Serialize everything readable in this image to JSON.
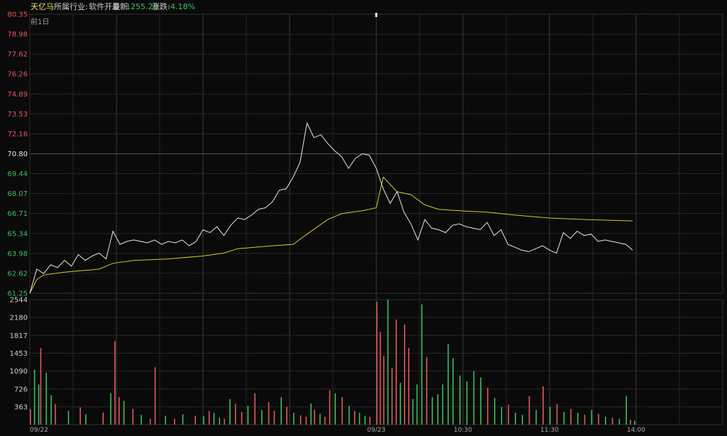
{
  "header": {
    "stock_name": "天亿马",
    "industry_label": "所属行业:",
    "industry_value": "软件开发",
    "latest_label": "最新",
    "latest_value": "1255.28",
    "change_label": "涨跌:",
    "change_value": "-4.18%",
    "prev_day_label": "前1日"
  },
  "colors": {
    "background": "#0a0a0a",
    "grid": "#262626",
    "price_line": "#e8e8e8",
    "avg_line": "#d7c82a",
    "up": "#e05a5a",
    "down": "#3cbf5a",
    "neutral": "#e8e8e8",
    "accent_yellow": "#f0e060"
  },
  "chart_data": [
    {
      "type": "line",
      "title": "",
      "yticks": [
        "80.35",
        "78.98",
        "77.62",
        "76.26",
        "74.89",
        "73.53",
        "72.16",
        "70.80",
        "69.44",
        "68.07",
        "66.71",
        "65.34",
        "63.98",
        "62.62",
        "61.25"
      ],
      "ytick_colors": [
        "up",
        "up",
        "up",
        "up",
        "up",
        "up",
        "up",
        "neutral",
        "down",
        "down",
        "down",
        "down",
        "down",
        "down",
        "down"
      ],
      "ylim": [
        61.25,
        80.35
      ],
      "reference_price": 70.8,
      "x_range": [
        0,
        100
      ],
      "day_split": 50,
      "xticks": [
        {
          "x": 0,
          "label": "09/22"
        },
        {
          "x": 50,
          "label": "09/23"
        },
        {
          "x": 62.5,
          "label": "10:30"
        },
        {
          "x": 75,
          "label": "11:30"
        },
        {
          "x": 87.5,
          "label": "14:00"
        }
      ],
      "series": [
        {
          "role": "price",
          "x": [
            0,
            1,
            2,
            3,
            4,
            5,
            6,
            7,
            8,
            9,
            10,
            11,
            12,
            13,
            14,
            15,
            16,
            17,
            18,
            19,
            20,
            21,
            22,
            23,
            24,
            25,
            26,
            27,
            28,
            29,
            30,
            31,
            32,
            33,
            34,
            35,
            36,
            37,
            38,
            39,
            40,
            41,
            42,
            43,
            44,
            45,
            46,
            47,
            48,
            49,
            50,
            51,
            52,
            53,
            54,
            55,
            56,
            57,
            58,
            59,
            60,
            61,
            62,
            63,
            64,
            65,
            66,
            67,
            68,
            69,
            70,
            71,
            72,
            73,
            74,
            75,
            76,
            77,
            78,
            79,
            80,
            81,
            82,
            83,
            84,
            85,
            86,
            87
          ],
          "values": [
            61.25,
            62.9,
            62.6,
            63.2,
            63.0,
            63.5,
            63.1,
            63.9,
            63.5,
            63.8,
            64.0,
            63.6,
            65.5,
            64.6,
            64.8,
            64.9,
            64.8,
            64.7,
            64.9,
            64.6,
            64.8,
            64.7,
            64.9,
            64.5,
            64.8,
            65.6,
            65.4,
            65.8,
            65.2,
            65.9,
            66.4,
            66.3,
            66.6,
            67.0,
            67.1,
            67.5,
            68.3,
            68.4,
            69.2,
            70.2,
            72.9,
            71.9,
            72.1,
            71.5,
            71.0,
            70.6,
            69.8,
            70.5,
            70.8,
            70.7,
            69.8,
            68.4,
            67.4,
            68.2,
            66.8,
            66.0,
            64.9,
            66.3,
            65.7,
            65.6,
            65.4,
            65.9,
            66.0,
            65.8,
            65.7,
            65.6,
            66.1,
            65.2,
            65.6,
            64.6,
            64.4,
            64.2,
            64.1,
            64.3,
            64.5,
            64.2,
            64.0,
            65.4,
            65.0,
            65.5,
            65.2,
            65.3,
            64.8,
            64.9,
            64.8,
            64.7,
            64.6,
            64.2
          ]
        },
        {
          "role": "average",
          "x": [
            0,
            1,
            2,
            5,
            10,
            12,
            15,
            20,
            25,
            28,
            30,
            35,
            38,
            40,
            43,
            45,
            48,
            50,
            51,
            53,
            55,
            57,
            59,
            62,
            66,
            70,
            75,
            80,
            87
          ],
          "values": [
            61.25,
            62.2,
            62.5,
            62.7,
            62.9,
            63.3,
            63.5,
            63.6,
            63.8,
            64.0,
            64.3,
            64.5,
            64.6,
            65.3,
            66.3,
            66.7,
            66.9,
            67.1,
            69.2,
            68.2,
            68.0,
            67.3,
            67.0,
            66.9,
            66.8,
            66.6,
            66.4,
            66.3,
            66.2
          ]
        }
      ]
    },
    {
      "type": "bar",
      "title": "",
      "yticks": [
        "2544",
        "2180",
        "1817",
        "1453",
        "1090",
        "726",
        "363"
      ],
      "ylim": [
        0,
        2544
      ],
      "x_range": [
        0,
        100
      ],
      "series": [
        {
          "role": "volume",
          "x": [
            0,
            0.6,
            1.2,
            1.5,
            2.3,
            3.0,
            3.6,
            5.5,
            7.2,
            8.0,
            10.5,
            11.6,
            12.2,
            12.8,
            13.5,
            14.8,
            16.0,
            17.3,
            18.0,
            19.5,
            20.8,
            22.0,
            23.8,
            25.0,
            25.8,
            26.5,
            27.3,
            28.0,
            28.8,
            29.6,
            30.5,
            31.4,
            32.4,
            33.4,
            34.4,
            35.2,
            36.2,
            37.0,
            38.0,
            39.0,
            39.8,
            40.5,
            41.0,
            41.8,
            42.5,
            43.2,
            44.0,
            45.0,
            46.0,
            46.8,
            47.5,
            48.3,
            49.0,
            50.0,
            50.5,
            51.0,
            51.6,
            52.2,
            52.8,
            53.4,
            54.0,
            54.6,
            55.2,
            55.8,
            56.5,
            57.2,
            58.0,
            58.8,
            59.5,
            60.3,
            61.0,
            62.0,
            63.0,
            64.0,
            65.0,
            66.0,
            67.0,
            68.0,
            69.0,
            70.0,
            71.0,
            72.0,
            73.0,
            74.0,
            75.0,
            76.0,
            77.0,
            78.0,
            79.0,
            80.0,
            81.0,
            82.0,
            83.0,
            84.0,
            85.0,
            86.0,
            86.6,
            87.2
          ],
          "values": [
            320,
            1120,
            820,
            1560,
            1060,
            600,
            420,
            280,
            350,
            210,
            250,
            640,
            1700,
            560,
            480,
            320,
            200,
            120,
            1170,
            180,
            120,
            210,
            180,
            170,
            280,
            240,
            140,
            120,
            520,
            420,
            260,
            380,
            640,
            300,
            460,
            280,
            560,
            360,
            240,
            190,
            160,
            430,
            300,
            220,
            160,
            700,
            640,
            560,
            380,
            280,
            240,
            180,
            160,
            2500,
            1890,
            1400,
            2544,
            1160,
            2140,
            850,
            2040,
            1560,
            520,
            820,
            2450,
            1370,
            560,
            620,
            820,
            1640,
            1350,
            1000,
            880,
            1090,
            960,
            750,
            540,
            360,
            410,
            240,
            200,
            580,
            300,
            780,
            360,
            420,
            260,
            320,
            240,
            200,
            300,
            220,
            160,
            140,
            120,
            580,
            100,
            80
          ],
          "colors": [
            "up",
            "down",
            "down",
            "up",
            "down",
            "down",
            "up",
            "down",
            "up",
            "down",
            "up",
            "down",
            "up",
            "up",
            "down",
            "up",
            "down",
            "up",
            "up",
            "down",
            "up",
            "down",
            "up",
            "down",
            "up",
            "down",
            "down",
            "up",
            "down",
            "up",
            "up",
            "down",
            "up",
            "down",
            "up",
            "up",
            "down",
            "up",
            "down",
            "up",
            "up",
            "down",
            "up",
            "down",
            "up",
            "up",
            "down",
            "up",
            "down",
            "up",
            "down",
            "down",
            "up",
            "up",
            "up",
            "up",
            "down",
            "up",
            "up",
            "down",
            "up",
            "up",
            "down",
            "down",
            "down",
            "up",
            "down",
            "down",
            "down",
            "down",
            "down",
            "down",
            "down",
            "down",
            "down",
            "up",
            "down",
            "down",
            "up",
            "down",
            "down",
            "up",
            "down",
            "up",
            "down",
            "up",
            "down",
            "up",
            "down",
            "up",
            "down",
            "up",
            "down",
            "up",
            "down",
            "down",
            "up",
            "down"
          ]
        }
      ]
    }
  ]
}
